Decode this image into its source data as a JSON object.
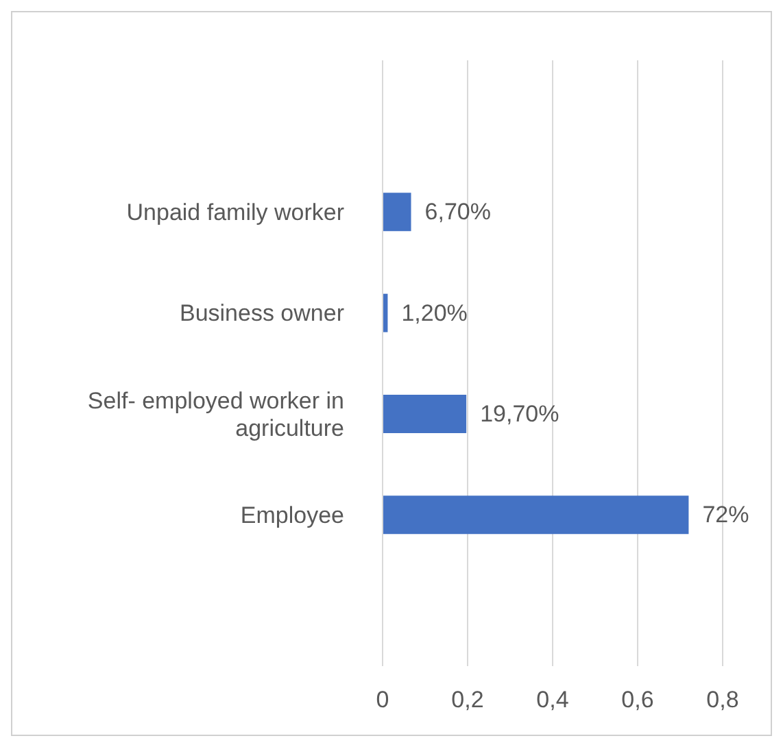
{
  "chart_data": {
    "type": "bar",
    "orientation": "horizontal",
    "categories": [
      null,
      "Unpaid family worker",
      "Business owner",
      "Self- employed worker in agriculture",
      "Employee",
      null
    ],
    "values": [
      null,
      0.067,
      0.012,
      0.197,
      0.72,
      null
    ],
    "value_labels": [
      null,
      "6,70%",
      "1,20%",
      "19,70%",
      "72%",
      null
    ],
    "color": "#4472c4",
    "xlim": [
      0,
      0.8
    ],
    "xticks": [
      0,
      {
        "value": 0.2,
        "label": "0,2"
      },
      {
        "value": 0.4,
        "label": "0,4"
      },
      {
        "value": 0.6,
        "label": "0,6"
      },
      {
        "value": 0.8,
        "label": "0,8"
      }
    ],
    "grid": "x"
  }
}
